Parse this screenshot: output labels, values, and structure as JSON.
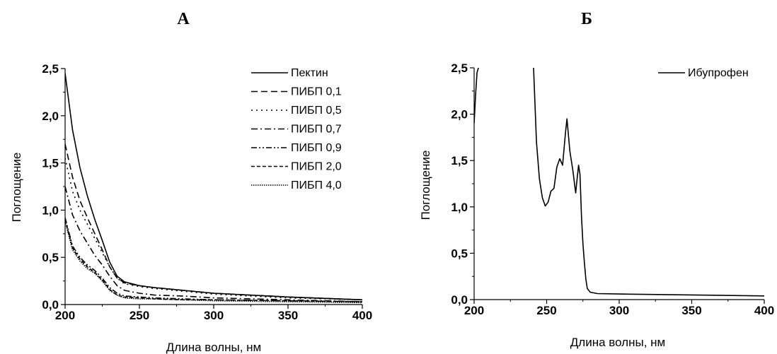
{
  "chart_data": [
    {
      "type": "line",
      "panel_label": "А",
      "xlabel": "Длина волны, нм",
      "ylabel": "Поглощение",
      "xlim": [
        200,
        400
      ],
      "ylim": [
        0,
        2.5
      ],
      "xticks": [
        200,
        250,
        300,
        350,
        400
      ],
      "xtick_labels": [
        "200",
        "250",
        "300",
        "350",
        "400"
      ],
      "yticks": [
        0,
        0.5,
        1,
        1.5,
        2,
        2.5
      ],
      "ytick_labels": [
        "0,0",
        "0,5",
        "1,0",
        "1,5",
        "2,0",
        "2,5"
      ],
      "legend_position": "top-right",
      "series": [
        {
          "name": "Пектин",
          "dash": "solid",
          "x": [
            200,
            205,
            210,
            215,
            220,
            225,
            230,
            235,
            240,
            250,
            260,
            280,
            300,
            350,
            400
          ],
          "y": [
            2.45,
            1.85,
            1.45,
            1.15,
            0.9,
            0.68,
            0.45,
            0.3,
            0.24,
            0.2,
            0.18,
            0.15,
            0.12,
            0.08,
            0.05
          ]
        },
        {
          "name": "ПИБП 0,1",
          "dash": "long-dash",
          "x": [
            200,
            205,
            210,
            215,
            220,
            225,
            230,
            235,
            240,
            250,
            260,
            280,
            300,
            350,
            400
          ],
          "y": [
            1.7,
            1.35,
            1.1,
            0.92,
            0.75,
            0.58,
            0.4,
            0.28,
            0.23,
            0.2,
            0.18,
            0.15,
            0.12,
            0.08,
            0.05
          ]
        },
        {
          "name": "ПИБП 0,5",
          "dash": "dot",
          "x": [
            200,
            205,
            210,
            215,
            220,
            225,
            230,
            235,
            240,
            250,
            260,
            280,
            300,
            350,
            400
          ],
          "y": [
            1.55,
            1.2,
            1.0,
            0.85,
            0.7,
            0.55,
            0.4,
            0.28,
            0.22,
            0.19,
            0.17,
            0.14,
            0.11,
            0.07,
            0.05
          ]
        },
        {
          "name": "ПИБП 0,7",
          "dash": "dash-dot",
          "x": [
            200,
            205,
            210,
            215,
            220,
            225,
            230,
            235,
            240,
            250,
            260,
            280,
            300,
            350,
            400
          ],
          "y": [
            1.25,
            0.95,
            0.78,
            0.65,
            0.52,
            0.42,
            0.3,
            0.2,
            0.15,
            0.12,
            0.1,
            0.09,
            0.07,
            0.05,
            0.03
          ]
        },
        {
          "name": "ПИБП 0,9",
          "dash": "dash-dot-dot",
          "x": [
            200,
            205,
            210,
            215,
            220,
            225,
            230,
            235,
            240,
            250,
            260,
            280,
            300,
            350,
            400
          ],
          "y": [
            0.92,
            0.62,
            0.5,
            0.42,
            0.36,
            0.28,
            0.18,
            0.12,
            0.09,
            0.08,
            0.07,
            0.06,
            0.05,
            0.04,
            0.03
          ]
        },
        {
          "name": "ПИБП 2,0",
          "dash": "short-dash",
          "x": [
            200,
            205,
            210,
            215,
            220,
            225,
            230,
            235,
            240,
            250,
            260,
            280,
            300,
            350,
            400
          ],
          "y": [
            0.9,
            0.6,
            0.48,
            0.4,
            0.34,
            0.26,
            0.16,
            0.1,
            0.08,
            0.07,
            0.06,
            0.05,
            0.05,
            0.04,
            0.03
          ]
        },
        {
          "name": "ПИБП 4,0",
          "dash": "fine-dot",
          "x": [
            200,
            205,
            210,
            215,
            220,
            225,
            230,
            235,
            240,
            250,
            260,
            280,
            300,
            350,
            400
          ],
          "y": [
            0.88,
            0.58,
            0.46,
            0.38,
            0.33,
            0.25,
            0.15,
            0.1,
            0.07,
            0.06,
            0.06,
            0.05,
            0.04,
            0.03,
            0.02
          ]
        }
      ]
    },
    {
      "type": "line",
      "panel_label": "Б",
      "xlabel": "Длина волны, нм",
      "ylabel": "Поглощение",
      "xlim": [
        200,
        400
      ],
      "ylim": [
        0,
        2.5
      ],
      "xticks": [
        200,
        250,
        300,
        350,
        400
      ],
      "xtick_labels": [
        "200",
        "250",
        "300",
        "350",
        "400"
      ],
      "yticks": [
        0,
        0.5,
        1,
        1.5,
        2,
        2.5
      ],
      "ytick_labels": [
        "0,0",
        "0,5",
        "1,0",
        "1,5",
        "2,0",
        "2,5"
      ],
      "legend_position": "top-right",
      "series": [
        {
          "name": "Ибупрофен",
          "dash": "solid",
          "segments": [
            {
              "x": [
                200,
                201,
                202,
                203
              ],
              "y": [
                1.9,
                2.2,
                2.45,
                2.5
              ]
            },
            {
              "x": [
                241,
                243,
                245,
                247,
                249,
                251,
                253,
                255,
                257,
                259,
                261,
                263,
                264,
                266,
                268,
                270,
                271,
                272,
                273,
                274,
                275,
                276,
                277,
                278,
                280,
                285,
                300,
                350,
                400
              ],
              "y": [
                2.5,
                1.7,
                1.3,
                1.1,
                1.01,
                1.05,
                1.17,
                1.2,
                1.43,
                1.52,
                1.45,
                1.8,
                1.95,
                1.6,
                1.4,
                1.15,
                1.3,
                1.45,
                1.35,
                0.9,
                0.6,
                0.4,
                0.22,
                0.12,
                0.08,
                0.065,
                0.06,
                0.05,
                0.04
              ]
            }
          ]
        }
      ]
    }
  ]
}
